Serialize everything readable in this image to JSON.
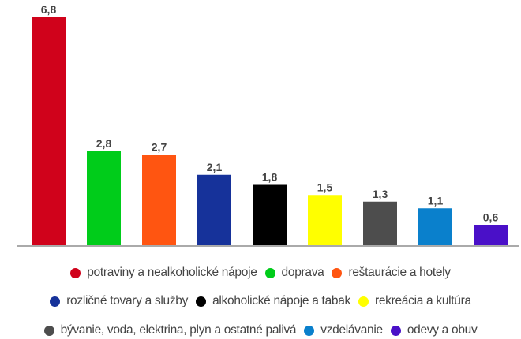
{
  "chart_data": {
    "type": "bar",
    "title": "",
    "xlabel": "",
    "ylabel": "",
    "ylim": [
      0,
      6.8
    ],
    "grid": false,
    "legend_placement": "bottom",
    "categories": [
      "potraviny a nealkoholické nápoje",
      "doprava",
      "reštaurácie a hotely",
      "rozličné tovary a služby",
      "alkoholické nápoje a tabak",
      "rekreácia a kultúra",
      "bývanie, voda, elektrina, plyn a ostatné palivá",
      "vzdelávanie",
      "odevy a obuv"
    ],
    "values": [
      6.8,
      2.8,
      2.7,
      2.1,
      1.8,
      1.5,
      1.3,
      1.1,
      0.6
    ],
    "value_labels": [
      "6,8",
      "2,8",
      "2,7",
      "2,1",
      "1,8",
      "1,5",
      "1,3",
      "1,1",
      "0,6"
    ],
    "colors": [
      "#d0021b",
      "#00cc1a",
      "#ff5511",
      "#16329a",
      "#000000",
      "#ffff00",
      "#4d4d4d",
      "#0a80cc",
      "#4a10c8"
    ],
    "legend_rows": [
      [
        0,
        1,
        2
      ],
      [
        3,
        4,
        5
      ],
      [
        6,
        7,
        8
      ]
    ]
  }
}
